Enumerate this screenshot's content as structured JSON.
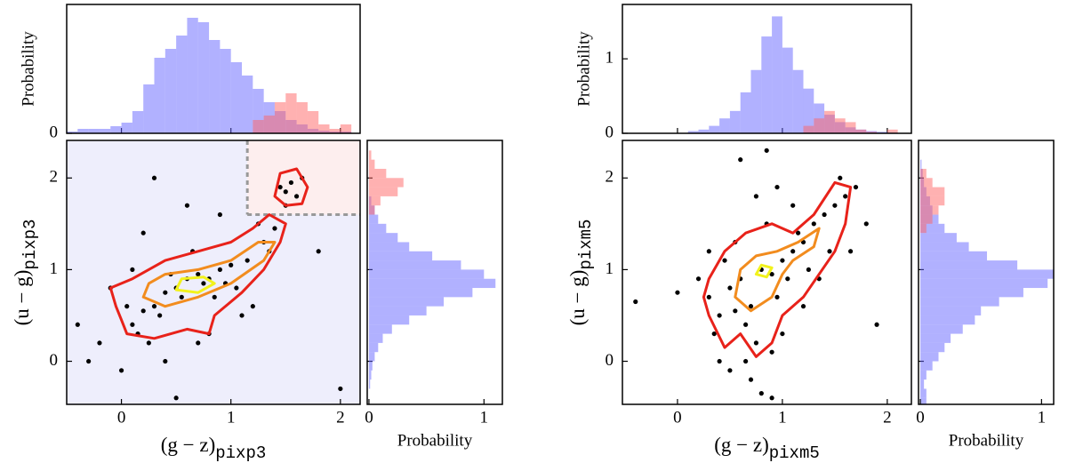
{
  "chart_data": [
    {
      "type": "scatter",
      "xlabel": "(g − z)",
      "xlabel_sub": "pixp3",
      "ylabel": "(u − g)",
      "ylabel_sub": "pixp3",
      "xlim": [
        -0.5,
        2.18
      ],
      "ylim": [
        -0.47,
        2.41
      ],
      "xticks": [
        0,
        1,
        2
      ],
      "yticks": [
        0,
        1,
        2
      ],
      "point_color": "#000000",
      "x": [
        0.1,
        0.2,
        0.3,
        0.4,
        0.5,
        0.6,
        0.7,
        0.8,
        0.9,
        1.0,
        0.15,
        0.35,
        0.55,
        0.75,
        0.95,
        1.15,
        1.3,
        1.4,
        0.05,
        0.25,
        0.45,
        0.65,
        0.85,
        1.05,
        1.25,
        -0.3,
        -0.1,
        0.0,
        1.5,
        1.55,
        1.6,
        1.45,
        1.65,
        1.5,
        0.2,
        0.6,
        1.1,
        0.4,
        0.8,
        1.8,
        2.0,
        -0.4,
        0.3,
        0.9,
        1.2,
        0.5,
        0.7,
        1.35,
        0.1,
        -0.2
      ],
      "y": [
        0.4,
        0.55,
        0.6,
        0.75,
        0.8,
        0.9,
        0.95,
        0.9,
        1.0,
        1.05,
        0.3,
        0.5,
        0.7,
        0.85,
        0.85,
        1.1,
        1.3,
        1.45,
        0.6,
        0.2,
        0.95,
        1.2,
        0.7,
        0.8,
        1.5,
        0.0,
        0.8,
        -0.1,
        1.85,
        1.95,
        1.8,
        1.9,
        2.0,
        1.7,
        1.4,
        1.7,
        0.5,
        0.0,
        0.3,
        1.2,
        -0.3,
        0.4,
        2.0,
        1.6,
        0.6,
        -0.4,
        0.2,
        1.2,
        1.0,
        0.2
      ],
      "contours": [
        {
          "color": "#e8221a",
          "x": [
            0.0,
            0.05,
            0.3,
            0.6,
            0.8,
            0.85,
            1.1,
            1.3,
            1.45,
            1.5,
            1.35,
            1.2,
            1.0,
            0.7,
            0.4,
            0.1,
            -0.1,
            -0.05
          ],
          "y": [
            0.45,
            0.3,
            0.25,
            0.35,
            0.3,
            0.5,
            0.75,
            1.0,
            1.3,
            1.5,
            1.6,
            1.45,
            1.3,
            1.2,
            1.1,
            0.9,
            0.8,
            0.6
          ]
        },
        {
          "color": "#e8221a",
          "x": [
            1.4,
            1.5,
            1.65,
            1.7,
            1.6,
            1.45
          ],
          "y": [
            1.8,
            1.7,
            1.72,
            1.9,
            2.1,
            2.05
          ]
        },
        {
          "color": "#f28c1e",
          "x": [
            0.2,
            0.4,
            0.7,
            1.0,
            1.3,
            1.4,
            1.25,
            1.0,
            0.7,
            0.4,
            0.25
          ],
          "y": [
            0.7,
            0.6,
            0.7,
            0.85,
            1.1,
            1.3,
            1.3,
            1.1,
            1.0,
            0.95,
            0.85
          ]
        },
        {
          "color": "#f2f21c",
          "x": [
            0.5,
            0.7,
            0.85,
            0.75,
            0.55
          ],
          "y": [
            0.78,
            0.75,
            0.85,
            0.92,
            0.9
          ]
        }
      ],
      "region": {
        "x": 1.15,
        "y": 1.6,
        "colors": [
          "#eeeefc",
          "#fdeeee"
        ]
      },
      "top_hist": {
        "ylabel": "Probability",
        "ylim": [
          0,
          1.45
        ],
        "yticks": [
          0
        ],
        "bins": [
          -0.5,
          -0.4,
          -0.3,
          -0.2,
          -0.1,
          0,
          0.1,
          0.2,
          0.3,
          0.4,
          0.5,
          0.6,
          0.7,
          0.8,
          0.9,
          1,
          1.1,
          1.2,
          1.3,
          1.4,
          1.5,
          1.6,
          1.7,
          1.8,
          1.9,
          2,
          2.1,
          2.2
        ],
        "series": [
          {
            "color": "#6464ff",
            "values": [
              0.02,
              0.05,
              0.05,
              0.05,
              0.08,
              0.12,
              0.25,
              0.55,
              0.85,
              0.95,
              1.1,
              1.3,
              1.25,
              1.05,
              0.95,
              0.8,
              0.65,
              0.5,
              0.35,
              0.25,
              0.15,
              0.1,
              0.05,
              0.03,
              0.02,
              0.02,
              0
            ]
          },
          {
            "color": "#ff6464",
            "values": [
              0,
              0,
              0,
              0,
              0,
              0,
              0,
              0,
              0,
              0,
              0,
              0,
              0,
              0,
              0,
              0,
              0,
              0.15,
              0.2,
              0.35,
              0.45,
              0.35,
              0.25,
              0.1,
              0.05,
              0.1,
              0
            ]
          }
        ]
      },
      "right_hist": {
        "xlabel": "Probability",
        "xlim": [
          -0.015,
          1.16
        ],
        "xticks": [
          0,
          1
        ],
        "bins": [
          -0.5,
          -0.4,
          -0.3,
          -0.2,
          -0.1,
          0,
          0.1,
          0.2,
          0.3,
          0.4,
          0.5,
          0.6,
          0.7,
          0.8,
          0.9,
          1,
          1.1,
          1.2,
          1.3,
          1.4,
          1.5,
          1.6,
          1.7,
          1.8,
          1.9,
          2,
          2.1,
          2.2,
          2.3,
          2.4
        ],
        "series": [
          {
            "color": "#6464ff",
            "values": [
              0,
              0,
              0.01,
              0.02,
              0.03,
              0.05,
              0.08,
              0.12,
              0.2,
              0.35,
              0.5,
              0.65,
              0.9,
              1.1,
              1.0,
              0.8,
              0.55,
              0.35,
              0.25,
              0.15,
              0.08,
              0.05,
              0.02,
              0,
              0,
              0,
              0,
              0,
              0
            ]
          },
          {
            "color": "#ff6464",
            "values": [
              0,
              0,
              0,
              0,
              0,
              0,
              0,
              0,
              0,
              0,
              0,
              0,
              0,
              0,
              0,
              0,
              0,
              0,
              0,
              0,
              0,
              0.05,
              0.1,
              0.25,
              0.3,
              0.15,
              0.05,
              0.02,
              0
            ]
          }
        ]
      }
    },
    {
      "type": "scatter",
      "xlabel": "(g − z)",
      "xlabel_sub": "pixm5",
      "ylabel": "(u − g)",
      "ylabel_sub": "pixm5",
      "xlim": [
        -0.525,
        2.23
      ],
      "ylim": [
        -0.47,
        2.41
      ],
      "xticks": [
        0,
        1,
        2
      ],
      "yticks": [
        0,
        1,
        2
      ],
      "point_color": "#000000",
      "x": [
        0.5,
        0.6,
        0.7,
        0.8,
        0.9,
        1.0,
        1.1,
        1.2,
        1.3,
        1.4,
        1.5,
        1.6,
        0.4,
        0.3,
        0.55,
        0.65,
        0.75,
        0.85,
        0.95,
        1.05,
        1.15,
        1.25,
        0.2,
        0.35,
        0.45,
        -0.4,
        0.0,
        1.7,
        1.8,
        1.9,
        1.55,
        1.45,
        0.7,
        0.8,
        0.9,
        0.6,
        0.5,
        1.0,
        0.75,
        0.85,
        1.35,
        0.65,
        0.95,
        1.2,
        0.4,
        1.1,
        0.3,
        1.65,
        0.55,
        0.9
      ],
      "y": [
        0.8,
        0.9,
        0.6,
        1.0,
        0.95,
        1.1,
        1.2,
        1.3,
        1.5,
        1.6,
        1.7,
        1.8,
        0.5,
        0.7,
        1.3,
        0.4,
        0.2,
        1.5,
        0.7,
        0.9,
        1.4,
        1.0,
        0.9,
        0.3,
        1.1,
        0.65,
        0.75,
        1.9,
        1.5,
        0.4,
        2.0,
        1.2,
        -0.2,
        -0.35,
        0.1,
        2.2,
        -0.1,
        0.3,
        1.8,
        2.3,
        0.9,
        0.0,
        1.9,
        0.6,
        0.0,
        1.7,
        1.2,
        1.2,
        0.55,
        -0.4
      ],
      "contours": [
        {
          "color": "#e8221a",
          "x": [
            0.3,
            0.45,
            0.6,
            0.75,
            0.9,
            1.0,
            1.2,
            1.5,
            1.6,
            1.65,
            1.5,
            1.3,
            1.1,
            0.9,
            0.65,
            0.45,
            0.3,
            0.25
          ],
          "y": [
            0.5,
            0.15,
            0.3,
            0.05,
            0.2,
            0.5,
            0.7,
            1.2,
            1.5,
            1.9,
            1.95,
            1.6,
            1.4,
            1.5,
            1.4,
            1.2,
            0.9,
            0.7
          ]
        },
        {
          "color": "#f28c1e",
          "x": [
            0.55,
            0.7,
            0.9,
            1.0,
            1.1,
            1.3,
            1.35,
            1.15,
            0.95,
            0.75,
            0.6
          ],
          "y": [
            0.7,
            0.55,
            0.7,
            0.95,
            1.1,
            1.25,
            1.45,
            1.3,
            1.2,
            1.15,
            1.0
          ]
        },
        {
          "color": "#f2f21c",
          "x": [
            0.75,
            0.85,
            0.9,
            0.8
          ],
          "y": [
            0.95,
            0.92,
            1.02,
            1.05
          ]
        }
      ],
      "top_hist": {
        "ylabel": "Probability",
        "ylim": [
          0,
          1.73
        ],
        "yticks": [
          0,
          1
        ],
        "bins": [
          -0.5,
          -0.4,
          -0.3,
          -0.2,
          -0.1,
          0,
          0.1,
          0.2,
          0.3,
          0.4,
          0.5,
          0.6,
          0.7,
          0.8,
          0.9,
          1,
          1.1,
          1.2,
          1.3,
          1.4,
          1.5,
          1.6,
          1.7,
          1.8,
          1.9,
          2,
          2.1,
          2.2
        ],
        "series": [
          {
            "color": "#6464ff",
            "values": [
              0,
              0,
              0,
              0,
              0,
              0,
              0.03,
              0.05,
              0.1,
              0.2,
              0.3,
              0.55,
              0.85,
              1.3,
              1.57,
              1.15,
              0.85,
              0.6,
              0.4,
              0.25,
              0.15,
              0.08,
              0.05,
              0.03,
              0.02,
              0.01,
              0
            ]
          },
          {
            "color": "#ff6464",
            "values": [
              0,
              0,
              0,
              0,
              0,
              0,
              0,
              0,
              0,
              0,
              0,
              0,
              0,
              0,
              0,
              0,
              0,
              0.1,
              0.2,
              0.3,
              0.2,
              0.15,
              0.05,
              0.02,
              0,
              0.05,
              0
            ]
          }
        ]
      },
      "right_hist": {
        "xlabel": "Probability",
        "xlim": [
          -0.015,
          1.1
        ],
        "xticks": [
          0,
          1
        ],
        "bins": [
          -0.5,
          -0.4,
          -0.3,
          -0.2,
          -0.1,
          0,
          0.1,
          0.2,
          0.3,
          0.4,
          0.5,
          0.6,
          0.7,
          0.8,
          0.9,
          1,
          1.1,
          1.2,
          1.3,
          1.4,
          1.5,
          1.6,
          1.7,
          1.8,
          1.9,
          2,
          2.1,
          2.2,
          2.3,
          2.4
        ],
        "series": [
          {
            "color": "#6464ff",
            "values": [
              0.05,
              0.05,
              0.03,
              0.05,
              0.1,
              0.15,
              0.2,
              0.25,
              0.35,
              0.45,
              0.5,
              0.65,
              0.85,
              1.05,
              1.1,
              0.8,
              0.55,
              0.4,
              0.3,
              0.2,
              0.15,
              0.1,
              0.08,
              0.05,
              0.03,
              0.02,
              0.01,
              0,
              0
            ]
          },
          {
            "color": "#ff6464",
            "values": [
              0,
              0,
              0,
              0,
              0,
              0,
              0,
              0,
              0,
              0,
              0,
              0,
              0,
              0,
              0,
              0,
              0,
              0,
              0,
              0.05,
              0.1,
              0.15,
              0.2,
              0.2,
              0.1,
              0.05,
              0,
              0,
              0
            ]
          }
        ]
      }
    }
  ]
}
